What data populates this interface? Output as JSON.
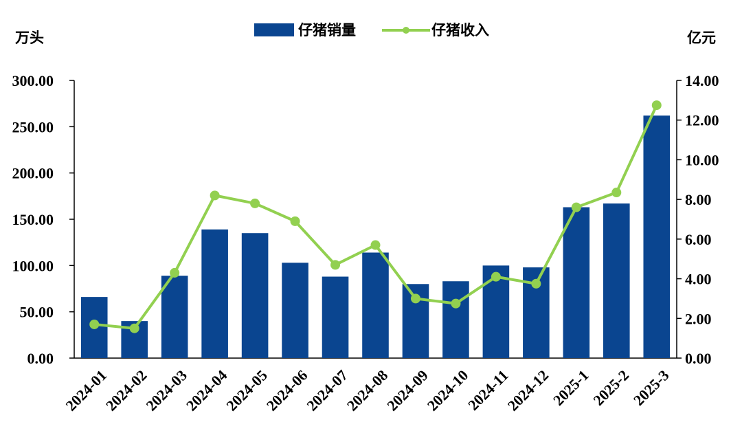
{
  "chart_data": {
    "type": "bar",
    "categories": [
      "2024-01",
      "2024-02",
      "2024-03",
      "2024-04",
      "2024-05",
      "2024-06",
      "2024-07",
      "2024-08",
      "2024-09",
      "2024-10",
      "2024-11",
      "2024-12",
      "2025-1",
      "2025-2",
      "2025-3"
    ],
    "series": [
      {
        "name": "仔猪销量",
        "type": "bar",
        "axis": "left",
        "color": "#0a4590",
        "values": [
          66,
          40,
          89,
          139,
          135,
          103,
          88,
          114,
          80,
          83,
          100,
          98,
          163,
          167,
          262
        ]
      },
      {
        "name": "仔猪收入",
        "type": "line",
        "axis": "right",
        "color": "#92d050",
        "values": [
          1.7,
          1.5,
          4.3,
          8.2,
          7.8,
          6.9,
          4.7,
          5.7,
          3.0,
          2.75,
          4.1,
          3.75,
          7.6,
          8.35,
          12.75
        ]
      }
    ],
    "y_left": {
      "label": "万头",
      "min": 0,
      "max": 300,
      "ticks": [
        "0.00",
        "50.00",
        "100.00",
        "150.00",
        "200.00",
        "250.00",
        "300.00"
      ]
    },
    "y_right": {
      "label": "亿元",
      "min": 0,
      "max": 14,
      "ticks": [
        "0.00",
        "2.00",
        "4.00",
        "6.00",
        "8.00",
        "10.00",
        "12.00",
        "14.00"
      ]
    },
    "legend": {
      "placement": "top-center"
    },
    "grid": false
  }
}
